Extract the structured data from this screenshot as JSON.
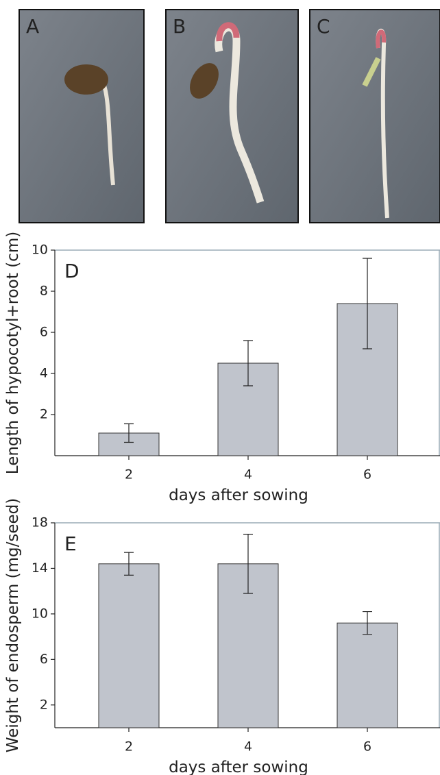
{
  "photos": {
    "labels": [
      "A",
      "B",
      "C"
    ]
  },
  "chart_data": [
    {
      "type": "bar",
      "annotation": "D",
      "ylabel": "Length of hypocotyl+root (cm)",
      "xlabel": "days after sowing",
      "categories": [
        "2",
        "4",
        "6"
      ],
      "values": [
        1.1,
        4.5,
        7.4
      ],
      "errors": [
        0.45,
        1.1,
        2.2
      ],
      "color": "#c0c4cc",
      "ylim": [
        0,
        10
      ],
      "yticks": [
        2,
        4,
        6,
        8,
        10
      ]
    },
    {
      "type": "bar",
      "annotation": "E",
      "ylabel": "Weight of endosperm (mg/seed)",
      "xlabel": "days after sowing",
      "categories": [
        "2",
        "4",
        "6"
      ],
      "values": [
        14.4,
        14.4,
        9.2
      ],
      "errors": [
        1.0,
        2.6,
        1.0
      ],
      "color": "#c0c4cc",
      "ylim": [
        0,
        18
      ],
      "yticks": [
        2,
        6,
        10,
        14,
        18
      ]
    }
  ]
}
